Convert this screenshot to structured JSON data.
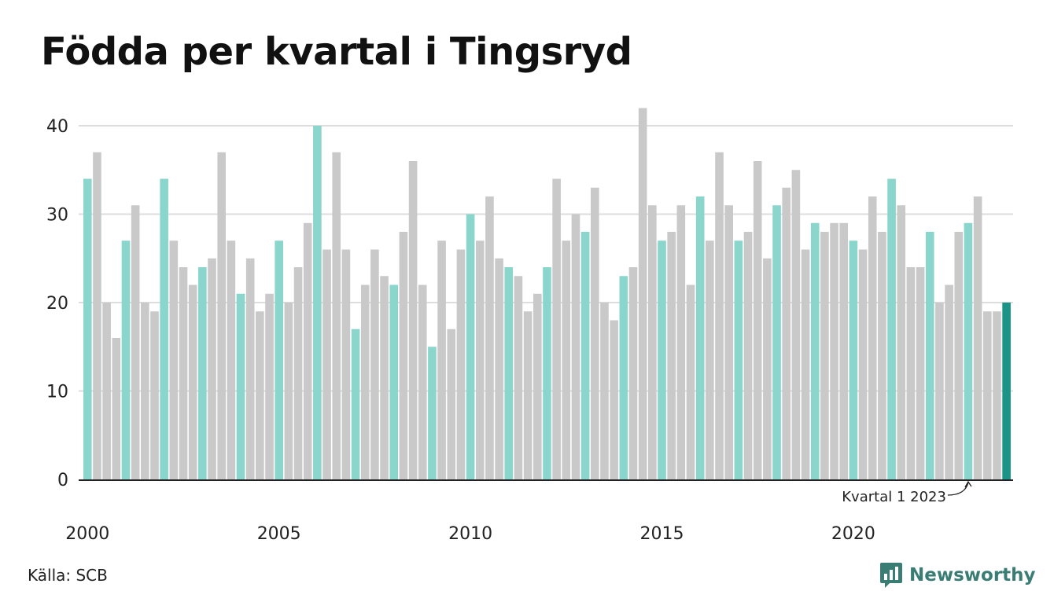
{
  "title": "Födda per kvartal i Tingsryd",
  "source": "Källa: SCB",
  "brand": "Newsworthy",
  "colors": {
    "q1": "#8ad5cc",
    "other": "#c9c9c9",
    "highlight": "#1a9486",
    "grid": "#dddddd",
    "axis": "#222222",
    "brand": "#3a7d74"
  },
  "chart_data": {
    "type": "bar",
    "title": "Födda per kvartal i Tingsryd",
    "xlabel": "",
    "ylabel": "",
    "ylim": [
      0,
      42
    ],
    "yticks": [
      0,
      10,
      20,
      30,
      40
    ],
    "xtick_labels": [
      "2000",
      "2005",
      "2010",
      "2015",
      "2020"
    ],
    "start_year": 2000,
    "start_quarter": 1,
    "values": [
      34,
      37,
      20,
      16,
      27,
      31,
      20,
      19,
      34,
      27,
      24,
      22,
      24,
      25,
      37,
      27,
      21,
      25,
      19,
      21,
      27,
      20,
      24,
      29,
      40,
      26,
      37,
      26,
      17,
      22,
      26,
      23,
      22,
      28,
      36,
      22,
      15,
      27,
      17,
      26,
      30,
      27,
      32,
      25,
      24,
      23,
      19,
      21,
      24,
      34,
      27,
      30,
      28,
      33,
      20,
      18,
      23,
      24,
      42,
      31,
      27,
      28,
      31,
      22,
      32,
      27,
      37,
      31,
      27,
      28,
      36,
      25,
      31,
      33,
      35,
      26,
      29,
      28,
      29,
      29,
      27,
      26,
      32,
      28,
      34,
      31,
      24,
      24,
      28,
      20,
      22,
      28,
      29,
      32,
      19,
      19,
      20
    ],
    "grid": true,
    "annotation": "Kvartal 1 2023"
  }
}
